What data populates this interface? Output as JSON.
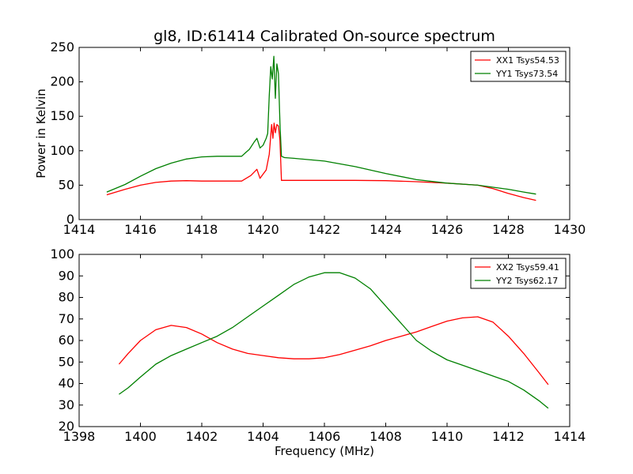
{
  "figure": {
    "title": "gl8, ID:61414 Calibrated On-source spectrum",
    "ylabel": "Power in Kelvin",
    "xlabel": "Frequency (MHz)"
  },
  "chart_data": [
    {
      "type": "line",
      "title": "gl8, ID:61414 Calibrated On-source spectrum",
      "xlabel": "",
      "ylabel": "Power in Kelvin",
      "xlim": [
        1414,
        1430
      ],
      "ylim": [
        0,
        250
      ],
      "xticks": [
        1414,
        1416,
        1418,
        1420,
        1422,
        1424,
        1426,
        1428,
        1430
      ],
      "yticks": [
        0,
        50,
        100,
        150,
        200,
        250
      ],
      "legend_position": "top-right",
      "series": [
        {
          "name": "XX1 Tsys54.53",
          "color": "#ff0000",
          "x": [
            1414.9,
            1415.5,
            1416.0,
            1416.5,
            1417.0,
            1417.5,
            1418.0,
            1418.5,
            1419.0,
            1419.3,
            1419.45,
            1419.6,
            1419.8,
            1419.9,
            1420.0,
            1420.1,
            1420.2,
            1420.28,
            1420.32,
            1420.36,
            1420.4,
            1420.45,
            1420.5,
            1420.55,
            1420.6,
            1420.7,
            1421.0,
            1421.5,
            1422.0,
            1423.0,
            1424.0,
            1425.0,
            1426.0,
            1427.0,
            1427.5,
            1428.0,
            1428.5,
            1428.9
          ],
          "y": [
            36,
            44,
            50,
            54,
            56,
            56.5,
            56,
            56,
            56,
            56,
            60,
            64,
            73,
            60,
            66,
            72,
            95,
            138,
            118,
            140,
            126,
            138,
            136,
            115,
            57,
            57,
            57,
            57,
            57,
            57,
            56.5,
            55,
            53,
            50,
            45,
            38,
            32,
            28
          ]
        },
        {
          "name": "YY1 Tsys73.54",
          "color": "#008000",
          "x": [
            1414.9,
            1415.5,
            1416.0,
            1416.5,
            1417.0,
            1417.5,
            1418.0,
            1418.5,
            1419.0,
            1419.3,
            1419.45,
            1419.55,
            1419.7,
            1419.8,
            1419.9,
            1420.0,
            1420.1,
            1420.15,
            1420.2,
            1420.25,
            1420.3,
            1420.35,
            1420.4,
            1420.45,
            1420.5,
            1420.55,
            1420.6,
            1420.7,
            1421.0,
            1421.5,
            1422.0,
            1423.0,
            1424.0,
            1425.0,
            1426.0,
            1427.0,
            1427.5,
            1428.0,
            1428.5,
            1428.9
          ],
          "y": [
            40,
            51,
            63,
            74,
            82,
            88,
            91,
            92,
            92,
            92,
            98,
            102,
            112,
            118,
            104,
            108,
            118,
            125,
            180,
            222,
            204,
            237,
            176,
            226,
            212,
            140,
            92,
            90,
            89,
            87,
            85,
            77,
            67,
            58,
            53,
            50,
            47,
            44,
            40,
            37
          ]
        }
      ]
    },
    {
      "type": "line",
      "title": "",
      "xlabel": "Frequency (MHz)",
      "ylabel": "",
      "xlim": [
        1398,
        1414
      ],
      "ylim": [
        20,
        100
      ],
      "xticks": [
        1398,
        1400,
        1402,
        1404,
        1406,
        1408,
        1410,
        1412,
        1414
      ],
      "yticks": [
        20,
        30,
        40,
        50,
        60,
        70,
        80,
        90,
        100
      ],
      "legend_position": "top-right",
      "series": [
        {
          "name": "XX2 Tsys59.41",
          "color": "#ff0000",
          "x": [
            1399.3,
            1399.6,
            1400.0,
            1400.5,
            1401.0,
            1401.5,
            1402.0,
            1402.5,
            1403.0,
            1403.5,
            1404.0,
            1404.5,
            1405.0,
            1405.5,
            1406.0,
            1406.5,
            1407.0,
            1407.5,
            1408.0,
            1408.5,
            1409.0,
            1409.5,
            1410.0,
            1410.5,
            1411.0,
            1411.5,
            1412.0,
            1412.5,
            1413.0,
            1413.3
          ],
          "y": [
            49,
            54,
            60,
            65,
            67,
            66,
            63,
            59,
            56,
            54,
            53,
            52,
            51.5,
            51.5,
            52,
            53.5,
            55.5,
            57.5,
            60,
            62,
            64,
            66.5,
            69,
            70.5,
            71,
            68.5,
            62,
            54,
            45,
            39.5
          ]
        },
        {
          "name": "YY2 Tsys62.17",
          "color": "#008000",
          "x": [
            1399.3,
            1399.6,
            1400.0,
            1400.5,
            1401.0,
            1401.5,
            1402.0,
            1402.5,
            1403.0,
            1403.5,
            1404.0,
            1404.5,
            1405.0,
            1405.5,
            1406.0,
            1406.5,
            1407.0,
            1407.5,
            1408.0,
            1408.5,
            1409.0,
            1409.5,
            1410.0,
            1410.5,
            1411.0,
            1411.5,
            1412.0,
            1412.5,
            1413.0,
            1413.3
          ],
          "y": [
            35,
            38,
            43,
            49,
            53,
            56,
            59,
            62,
            66,
            71,
            76,
            81,
            86,
            89.5,
            91.5,
            91.5,
            89,
            84,
            76,
            68,
            60,
            55,
            51,
            48.5,
            46,
            43.5,
            41,
            37,
            32,
            28.5
          ]
        }
      ]
    }
  ]
}
